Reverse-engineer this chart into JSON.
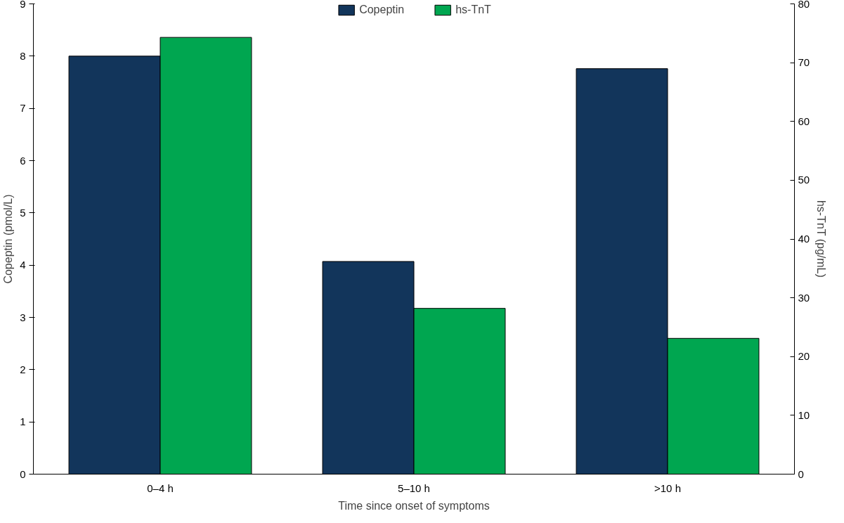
{
  "chart_data": {
    "type": "bar",
    "xlabel": "Time since onset of symptoms",
    "ylabel": "Copeptin (pmol/L)",
    "y2label": "hs-TnT (pg/mL)",
    "categories": [
      "0–4 h",
      "5–10 h",
      ">10 h"
    ],
    "series": [
      {
        "name": "Copeptin",
        "color": "#12355b",
        "values": [
          8.0,
          4.07,
          7.76
        ]
      },
      {
        "name": "hs-TnT",
        "color": "#00a650",
        "values": [
          74.3,
          28.2,
          23.1
        ],
        "axis": "y2"
      }
    ],
    "ylim": [
      0,
      9
    ],
    "yticks": [
      0,
      1,
      2,
      3,
      4,
      5,
      6,
      7,
      8,
      9
    ],
    "y2lim": [
      0,
      80
    ],
    "y2ticks": [
      0,
      10,
      20,
      30,
      40,
      50,
      60,
      70,
      80
    ],
    "grid": false,
    "legend": "top"
  }
}
